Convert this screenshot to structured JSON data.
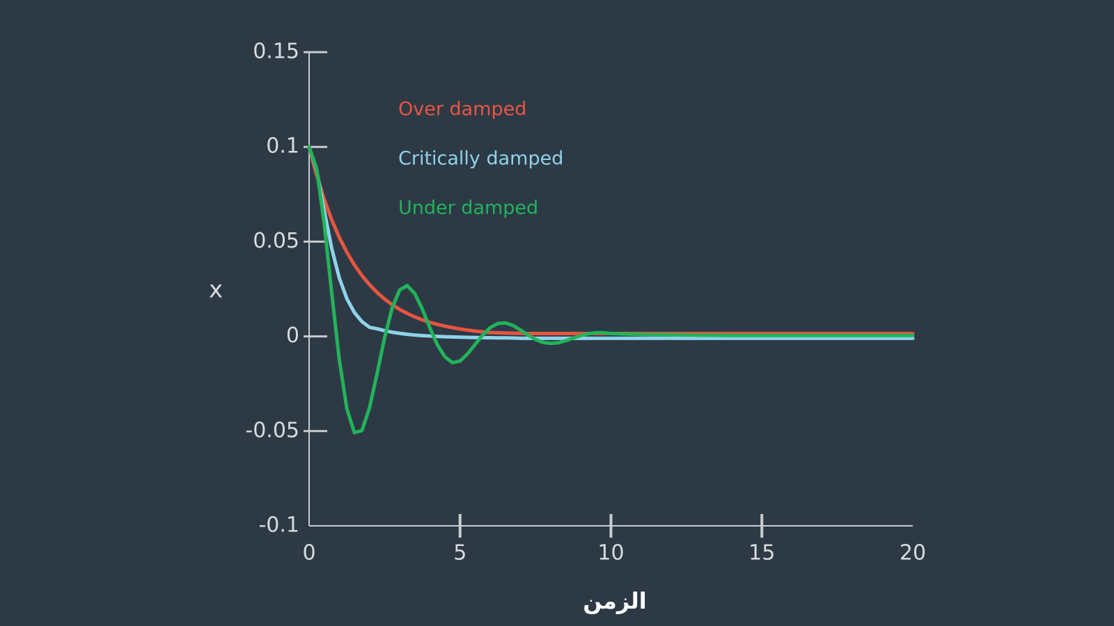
{
  "chart_data": {
    "type": "line",
    "x_label": "الزمن",
    "y_label": "x",
    "x": [
      0,
      0.25,
      0.5,
      0.75,
      1,
      1.25,
      1.5,
      1.75,
      2,
      2.25,
      2.5,
      2.75,
      3,
      3.25,
      3.5,
      3.75,
      4,
      4.25,
      4.5,
      4.75,
      5,
      5.25,
      5.5,
      5.75,
      6,
      6.25,
      6.5,
      6.75,
      7,
      7.25,
      7.5,
      7.75,
      8,
      8.25,
      8.5,
      8.75,
      9,
      9.25,
      9.5,
      9.75,
      10,
      11,
      12,
      13,
      14,
      15,
      16,
      17,
      18,
      19,
      20
    ],
    "series": [
      {
        "name": "Over damped",
        "color": "#e8553f",
        "values": [
          0.1,
          0.085,
          0.0723,
          0.0614,
          0.0522,
          0.0444,
          0.0377,
          0.0321,
          0.0273,
          0.0232,
          0.0197,
          0.0167,
          0.0142,
          0.0121,
          0.0103,
          0.0087,
          0.0074,
          0.0063,
          0.0054,
          0.0046,
          0.0039,
          0.0033,
          0.0028,
          0.0024,
          0.002,
          0.0019,
          0.0018,
          0.0017,
          0.0016,
          0.0015,
          0.0015,
          0.0015,
          0.0015,
          0.0015,
          0.0015,
          0.0015,
          0.0015,
          0.0015,
          0.0015,
          0.0015,
          0.0015,
          0.0015,
          0.0015,
          0.0015,
          0.0015,
          0.0015,
          0.0015,
          0.0015,
          0.0015,
          0.0015,
          0.0015
        ]
      },
      {
        "name": "Critically damped",
        "color": "#8fd3ea",
        "values": [
          0.1,
          0.0878,
          0.0663,
          0.0463,
          0.0308,
          0.0199,
          0.0126,
          0.0078,
          0.0048,
          0.004,
          0.003,
          0.0022,
          0.0016,
          0.0011,
          0.0007,
          0.0004,
          0.0002,
          0,
          -0.0002,
          -0.0003,
          -0.0004,
          -0.0005,
          -0.0006,
          -0.0007,
          -0.0007,
          -0.0008,
          -0.0008,
          -0.0009,
          -0.001,
          -0.001,
          -0.001,
          -0.001,
          -0.001,
          -0.001,
          -0.001,
          -0.001,
          -0.001,
          -0.001,
          -0.001,
          -0.001,
          -0.001,
          -0.001,
          -0.001,
          -0.001,
          -0.001,
          -0.001,
          -0.001,
          -0.001,
          -0.001,
          -0.001,
          -0.001
        ]
      },
      {
        "name": "Under damped",
        "color": "#22b35a",
        "values": [
          0.1,
          0.0885,
          0.0595,
          0.0227,
          -0.0124,
          -0.0382,
          -0.0508,
          -0.0497,
          -0.0377,
          -0.0197,
          -0.0007,
          0.015,
          0.0245,
          0.0268,
          0.0226,
          0.0144,
          0.0045,
          -0.0045,
          -0.0108,
          -0.0139,
          -0.013,
          -0.0092,
          -0.0042,
          0.0007,
          0.0046,
          0.0068,
          0.0071,
          0.0058,
          0.0034,
          0.0007,
          -0.0016,
          -0.0032,
          -0.0037,
          -0.0034,
          -0.0023,
          -0.0009,
          0.0004,
          0.0014,
          0.0019,
          0.0019,
          0.0015,
          0.001,
          0.0008,
          0.0006,
          0.0005,
          0.0005,
          0.0005,
          0.0005,
          0.0005,
          0.0005,
          0.0005
        ]
      }
    ],
    "xlim": [
      0,
      20
    ],
    "xticks": [
      0,
      5,
      10,
      15,
      20
    ],
    "ylim": [
      -0.1,
      0.15
    ],
    "yticks": [
      0.15,
      0.1,
      0.05,
      0,
      -0.05,
      -0.1
    ],
    "axis_color": "#c8ccd0",
    "background": "#2d3a46"
  }
}
